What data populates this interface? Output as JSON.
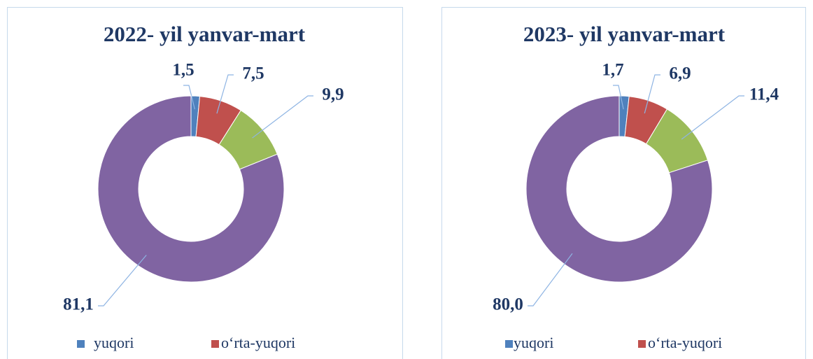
{
  "chart_data": [
    {
      "type": "donut",
      "title": "2022- yil yanvar-mart",
      "categories": [
        "yuqori",
        "o‘rta-yuqori",
        null,
        null
      ],
      "values": [
        1.5,
        7.5,
        9.9,
        81.1
      ],
      "value_labels": [
        "1,5",
        "7,5",
        "9,9",
        "81,1"
      ],
      "colors": [
        "#4f81bd",
        "#c0504d",
        "#9bbb59",
        "#8064a2"
      ]
    },
    {
      "type": "donut",
      "title": "2023- yil yanvar-mart",
      "categories": [
        "yuqori",
        "o‘rta-yuqori",
        null,
        null
      ],
      "values": [
        1.7,
        6.9,
        11.4,
        80.0
      ],
      "value_labels": [
        "1,7",
        "6,9",
        "11,4",
        "80,0"
      ],
      "colors": [
        "#4f81bd",
        "#c0504d",
        "#9bbb59",
        "#8064a2"
      ]
    }
  ]
}
